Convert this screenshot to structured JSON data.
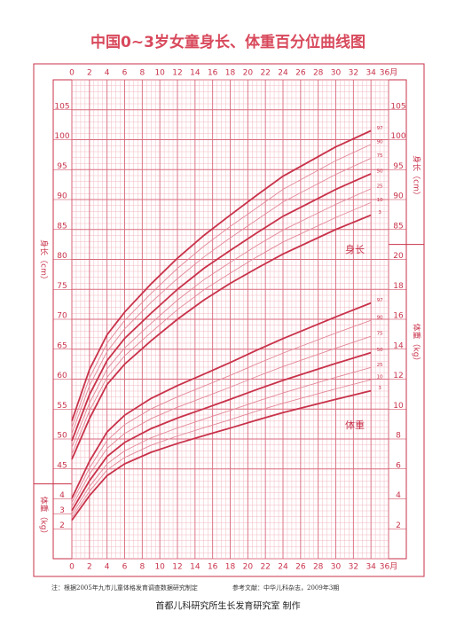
{
  "chart_data": {
    "type": "line",
    "title": "中国0~3岁女童身长、体重百分位曲线图",
    "x": [
      0,
      2,
      4,
      6,
      9,
      12,
      15,
      18,
      21,
      24,
      30,
      34
    ],
    "xlim": [
      0,
      36
    ],
    "xticks": [
      0,
      2,
      4,
      6,
      8,
      10,
      12,
      14,
      16,
      18,
      20,
      22,
      24,
      26,
      28,
      30,
      32,
      34,
      {
        "value": 36,
        "label": "36月"
      }
    ],
    "ylim": [
      30,
      110
    ],
    "yticks": [
      45,
      50,
      55,
      60,
      65,
      70,
      75,
      80,
      85,
      90,
      95,
      100,
      105
    ],
    "height_ticks_right": [
      85,
      90,
      95,
      100,
      105
    ],
    "y2lim": [
      0,
      32
    ],
    "y2ticks": [
      2,
      4,
      6,
      8,
      10,
      12,
      14,
      16,
      18,
      20
    ],
    "weight_ticks_left": [
      2,
      3,
      4
    ],
    "height_axis_title": "身长（cm）",
    "weight_axis_title": "体重（kg）",
    "height_note": "身长",
    "weight_note": "体重",
    "grid": true,
    "series": [
      {
        "name": "97",
        "color": "#c8324a",
        "values": [
          53.0,
          61.6,
          67.4,
          71.2,
          75.9,
          80.2,
          84.0,
          87.4,
          90.7,
          93.9,
          98.8,
          101.5
        ]
      },
      {
        "name": "90",
        "color": "#e38898",
        "values": [
          51.9,
          60.2,
          66.0,
          69.8,
          74.3,
          78.5,
          82.2,
          85.5,
          88.6,
          91.7,
          96.5,
          99.2
        ]
      },
      {
        "name": "75",
        "color": "#e38898",
        "values": [
          50.9,
          58.9,
          64.6,
          68.4,
          72.8,
          76.8,
          80.4,
          83.6,
          86.6,
          89.6,
          94.2,
          96.9
        ]
      },
      {
        "name": "50",
        "color": "#c8324a",
        "values": [
          49.7,
          57.4,
          63.1,
          66.8,
          71.0,
          75.0,
          78.5,
          81.5,
          84.4,
          87.2,
          91.7,
          94.3
        ]
      },
      {
        "name": "25",
        "color": "#e38898",
        "values": [
          48.6,
          56.0,
          61.7,
          65.2,
          69.3,
          73.2,
          76.6,
          79.5,
          82.3,
          84.9,
          89.2,
          91.8
        ]
      },
      {
        "name": "10",
        "color": "#e38898",
        "values": [
          47.5,
          54.7,
          60.3,
          63.9,
          67.8,
          71.6,
          74.9,
          77.7,
          80.4,
          82.9,
          87.0,
          89.5
        ]
      },
      {
        "name": "3",
        "color": "#c8324a",
        "values": [
          46.6,
          53.4,
          59.1,
          62.5,
          66.4,
          70.0,
          73.2,
          76.0,
          78.5,
          80.9,
          85.0,
          87.4
        ]
      },
      {
        "name": "97",
        "color": "#c8324a",
        "axis": "y2",
        "values": [
          4.04,
          6.51,
          8.47,
          9.59,
          10.71,
          11.57,
          12.33,
          13.11,
          13.93,
          14.71,
          16.16,
          17.09
        ]
      },
      {
        "name": "90",
        "color": "#e38898",
        "axis": "y2",
        "values": [
          3.75,
          6.06,
          7.9,
          8.96,
          10.01,
          10.82,
          11.53,
          12.25,
          13.01,
          13.74,
          15.08,
          15.93
        ]
      },
      {
        "name": "75",
        "color": "#e38898",
        "axis": "y2",
        "values": [
          3.49,
          5.64,
          7.37,
          8.37,
          9.36,
          10.12,
          10.79,
          11.46,
          12.17,
          12.84,
          14.07,
          14.86
        ]
      },
      {
        "name": "50",
        "color": "#c8324a",
        "axis": "y2",
        "values": [
          3.21,
          5.21,
          6.83,
          7.77,
          8.69,
          9.4,
          10.02,
          10.65,
          11.3,
          11.92,
          13.05,
          13.77
        ]
      },
      {
        "name": "25",
        "color": "#e38898",
        "axis": "y2",
        "values": [
          2.96,
          4.82,
          6.34,
          7.21,
          8.08,
          8.74,
          9.33,
          9.91,
          10.51,
          11.08,
          12.12,
          12.78
        ]
      },
      {
        "name": "10",
        "color": "#e38898",
        "axis": "y2",
        "values": [
          2.76,
          4.5,
          5.93,
          6.76,
          7.58,
          8.2,
          8.75,
          9.29,
          9.86,
          10.39,
          11.35,
          11.96
        ]
      },
      {
        "name": "3",
        "color": "#c8324a",
        "axis": "y2",
        "values": [
          2.57,
          4.21,
          5.55,
          6.34,
          7.11,
          7.7,
          8.22,
          8.73,
          9.26,
          9.76,
          10.65,
          11.22
        ]
      }
    ]
  },
  "footnote": "注：根据2005年九市儿童体格发育调查数据研究制定",
  "reference": "参考文献：中华儿科杂志，2009年3期",
  "maker": "首都儿科研究所生长发育研究室  制作"
}
